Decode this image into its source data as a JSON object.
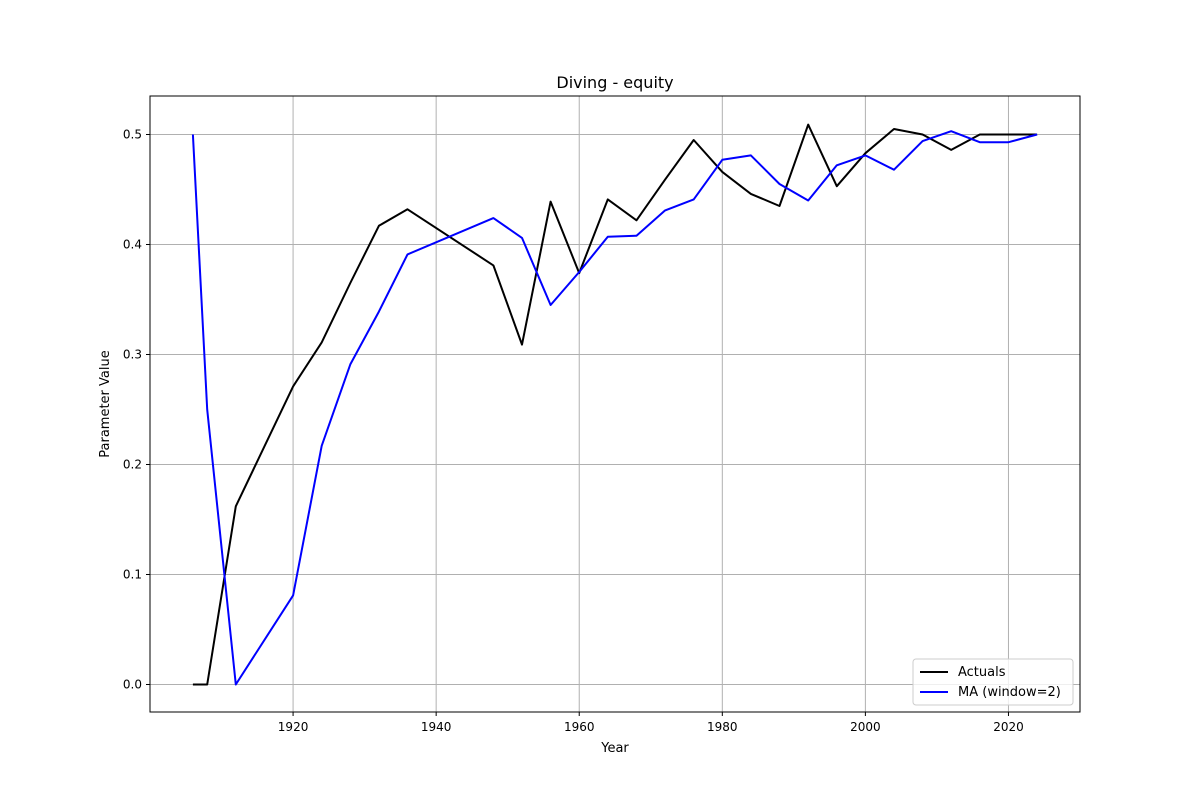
{
  "chart_data": {
    "type": "line",
    "title": "Diving - equity",
    "xlabel": "Year",
    "ylabel": "Parameter Value",
    "xlim": [
      1900,
      2030
    ],
    "ylim": [
      -0.025,
      0.535
    ],
    "xticks": [
      1920,
      1940,
      1960,
      1980,
      2000,
      2020
    ],
    "yticks": [
      0.0,
      0.1,
      0.2,
      0.3,
      0.4,
      0.5
    ],
    "xtick_labels": [
      "1920",
      "1940",
      "1960",
      "1980",
      "2000",
      "2020"
    ],
    "ytick_labels": [
      "0.0",
      "0.1",
      "0.2",
      "0.3",
      "0.4",
      "0.5"
    ],
    "grid": true,
    "legend_position": "lower-right",
    "series": [
      {
        "name": "Actuals",
        "color": "#000000",
        "x": [
          1906,
          1908,
          1912,
          1920,
          1924,
          1928,
          1932,
          1936,
          1948,
          1952,
          1956,
          1960,
          1964,
          1968,
          1972,
          1976,
          1980,
          1984,
          1988,
          1992,
          1996,
          2000,
          2004,
          2008,
          2012,
          2016,
          2020,
          2024
        ],
        "y": [
          0.0,
          0.0,
          0.162,
          0.271,
          0.311,
          0.365,
          0.417,
          0.432,
          0.381,
          0.309,
          0.439,
          0.374,
          0.441,
          0.422,
          0.459,
          0.495,
          0.466,
          0.446,
          0.435,
          0.509,
          0.453,
          0.483,
          0.505,
          0.5,
          0.486,
          0.5,
          0.5,
          0.5
        ]
      },
      {
        "name": "MA (window=2)",
        "color": "#0000ff",
        "x": [
          1906,
          1908,
          1912,
          1920,
          1924,
          1928,
          1932,
          1936,
          1948,
          1952,
          1956,
          1960,
          1964,
          1968,
          1972,
          1976,
          1980,
          1984,
          1988,
          1992,
          1996,
          2000,
          2004,
          2008,
          2012,
          2016,
          2020,
          2024
        ],
        "y": [
          0.5,
          0.25,
          0.0,
          0.081,
          0.217,
          0.291,
          0.339,
          0.391,
          0.424,
          0.406,
          0.345,
          0.375,
          0.407,
          0.408,
          0.431,
          0.441,
          0.477,
          0.481,
          0.455,
          0.44,
          0.472,
          0.481,
          0.468,
          0.494,
          0.503,
          0.493,
          0.493,
          0.5
        ]
      }
    ]
  }
}
